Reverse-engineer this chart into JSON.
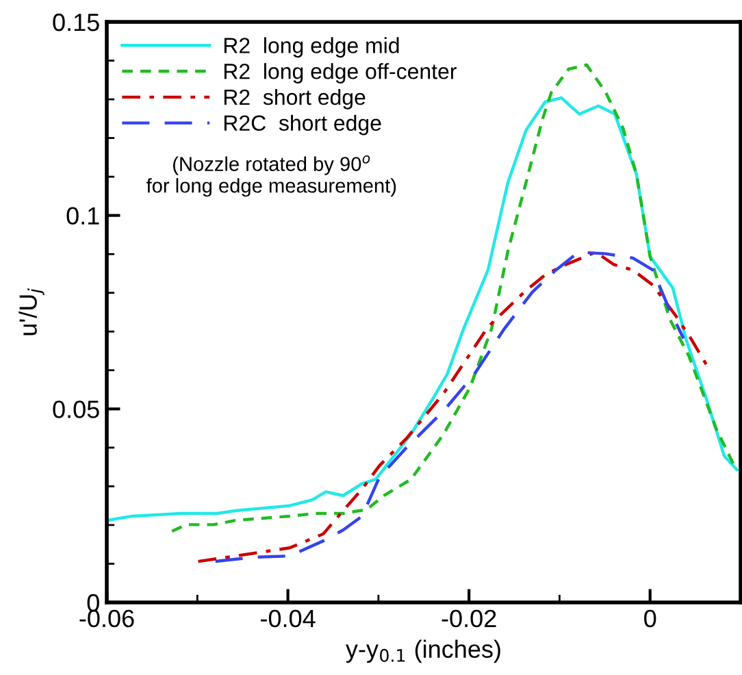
{
  "chart_data": {
    "type": "line",
    "xlabel": "y-y$_{0.1}$ (inches)",
    "ylabel": "u'/U$_{j}$",
    "annotations": [
      "(Nozzle rotated by 90$^{o}$\nfor long edge measurement)"
    ],
    "xlim": [
      -0.06,
      0.01
    ],
    "ylim": [
      0,
      0.15
    ],
    "xticks": [
      {
        "value": -0.06,
        "label": "-0.06"
      },
      {
        "value": -0.05,
        "label": null
      },
      {
        "value": -0.04,
        "label": "-0.04"
      },
      {
        "value": -0.03,
        "label": null
      },
      {
        "value": -0.02,
        "label": "-0.02"
      },
      {
        "value": -0.01,
        "label": null
      },
      0
    ],
    "yticks": [
      0,
      {
        "value": 0.01,
        "label": null
      },
      {
        "value": 0.02,
        "label": null
      },
      {
        "value": 0.03,
        "label": null
      },
      {
        "value": 0.04,
        "label": null
      },
      0.05,
      {
        "value": 0.06,
        "label": null
      },
      {
        "value": 0.07,
        "label": null
      },
      {
        "value": 0.08,
        "label": null
      },
      {
        "value": 0.09,
        "label": null
      },
      0.1,
      {
        "value": 0.11,
        "label": null
      },
      {
        "value": 0.12,
        "label": null
      },
      {
        "value": 0.13,
        "label": null
      },
      {
        "value": 0.14,
        "label": null
      },
      0.15
    ],
    "grid": false,
    "legend": "top left",
    "marker": "none",
    "series": [
      {
        "name": "R2  long edge mid",
        "color": "#22e8e8",
        "line_style": "solid",
        "x": [
          -0.06,
          -0.0572,
          -0.0518,
          -0.0478,
          -0.0458,
          -0.0398,
          -0.0373,
          -0.0358,
          -0.0339,
          -0.0318,
          -0.0303,
          -0.0264,
          -0.0239,
          -0.0224,
          -0.0206,
          -0.0179,
          -0.0157,
          -0.0137,
          -0.0116,
          -0.0098,
          -0.0078,
          -0.0057,
          -0.0039,
          -0.0015,
          0.0,
          0.0025,
          0.004,
          0.0063,
          0.0082,
          0.0096
        ],
        "values": [
          0.0212,
          0.0223,
          0.023,
          0.023,
          0.0237,
          0.025,
          0.0265,
          0.0286,
          0.0276,
          0.0307,
          0.0318,
          0.0435,
          0.053,
          0.059,
          0.0707,
          0.0859,
          0.1085,
          0.122,
          0.1293,
          0.1304,
          0.1262,
          0.1283,
          0.1262,
          0.1106,
          0.0894,
          0.0813,
          0.0678,
          0.052,
          0.0378,
          0.0343
        ]
      },
      {
        "name": "R2  long edge off-center",
        "color": "#22bb22",
        "line_style": "dashed",
        "x": [
          -0.0528,
          -0.0512,
          -0.0482,
          -0.0458,
          -0.0398,
          -0.0369,
          -0.0339,
          -0.0313,
          -0.0294,
          -0.0264,
          -0.0228,
          -0.0199,
          -0.0175,
          -0.0157,
          -0.0137,
          -0.0119,
          -0.0109,
          -0.009,
          -0.007,
          -0.0049,
          -0.003,
          -0.0015,
          0.0,
          0.0022,
          0.0043,
          0.0073,
          0.0093
        ],
        "values": [
          0.0184,
          0.0201,
          0.0201,
          0.0212,
          0.0223,
          0.023,
          0.023,
          0.024,
          0.0276,
          0.0318,
          0.0435,
          0.0555,
          0.0707,
          0.0908,
          0.1085,
          0.1247,
          0.1318,
          0.1378,
          0.1389,
          0.1318,
          0.1226,
          0.1106,
          0.0894,
          0.0731,
          0.0636,
          0.0449,
          0.0353
        ]
      },
      {
        "name": "R2  short edge",
        "color": "#cc0000",
        "line_style": "dashdot",
        "x": [
          -0.0499,
          -0.0458,
          -0.0398,
          -0.0361,
          -0.0339,
          -0.0318,
          -0.0299,
          -0.0269,
          -0.0228,
          -0.0179,
          -0.0139,
          -0.0115,
          -0.0093,
          -0.006,
          -0.004,
          -0.0019,
          0.0003,
          0.0028,
          0.0045,
          0.0063
        ],
        "values": [
          0.0106,
          0.012,
          0.0141,
          0.0177,
          0.0237,
          0.0293,
          0.0353,
          0.0424,
          0.054,
          0.0712,
          0.0802,
          0.0848,
          0.0873,
          0.0905,
          0.0873,
          0.0859,
          0.082,
          0.0742,
          0.0682,
          0.0611
        ]
      },
      {
        "name": "R2C  short edge",
        "color": "#3344ee",
        "line_style": "longdash",
        "x": [
          -0.048,
          -0.0437,
          -0.0398,
          -0.0361,
          -0.0339,
          -0.0318,
          -0.0299,
          -0.0269,
          -0.0228,
          -0.0194,
          -0.0161,
          -0.013,
          -0.0104,
          -0.0079,
          -0.0049,
          -0.0019,
          0.0003,
          0.0022,
          0.0037
        ],
        "values": [
          0.0106,
          0.0117,
          0.012,
          0.0159,
          0.0187,
          0.0223,
          0.0323,
          0.04,
          0.0495,
          0.059,
          0.0707,
          0.0802,
          0.0859,
          0.0905,
          0.0901,
          0.089,
          0.0859,
          0.0753,
          0.0682
        ]
      }
    ]
  }
}
